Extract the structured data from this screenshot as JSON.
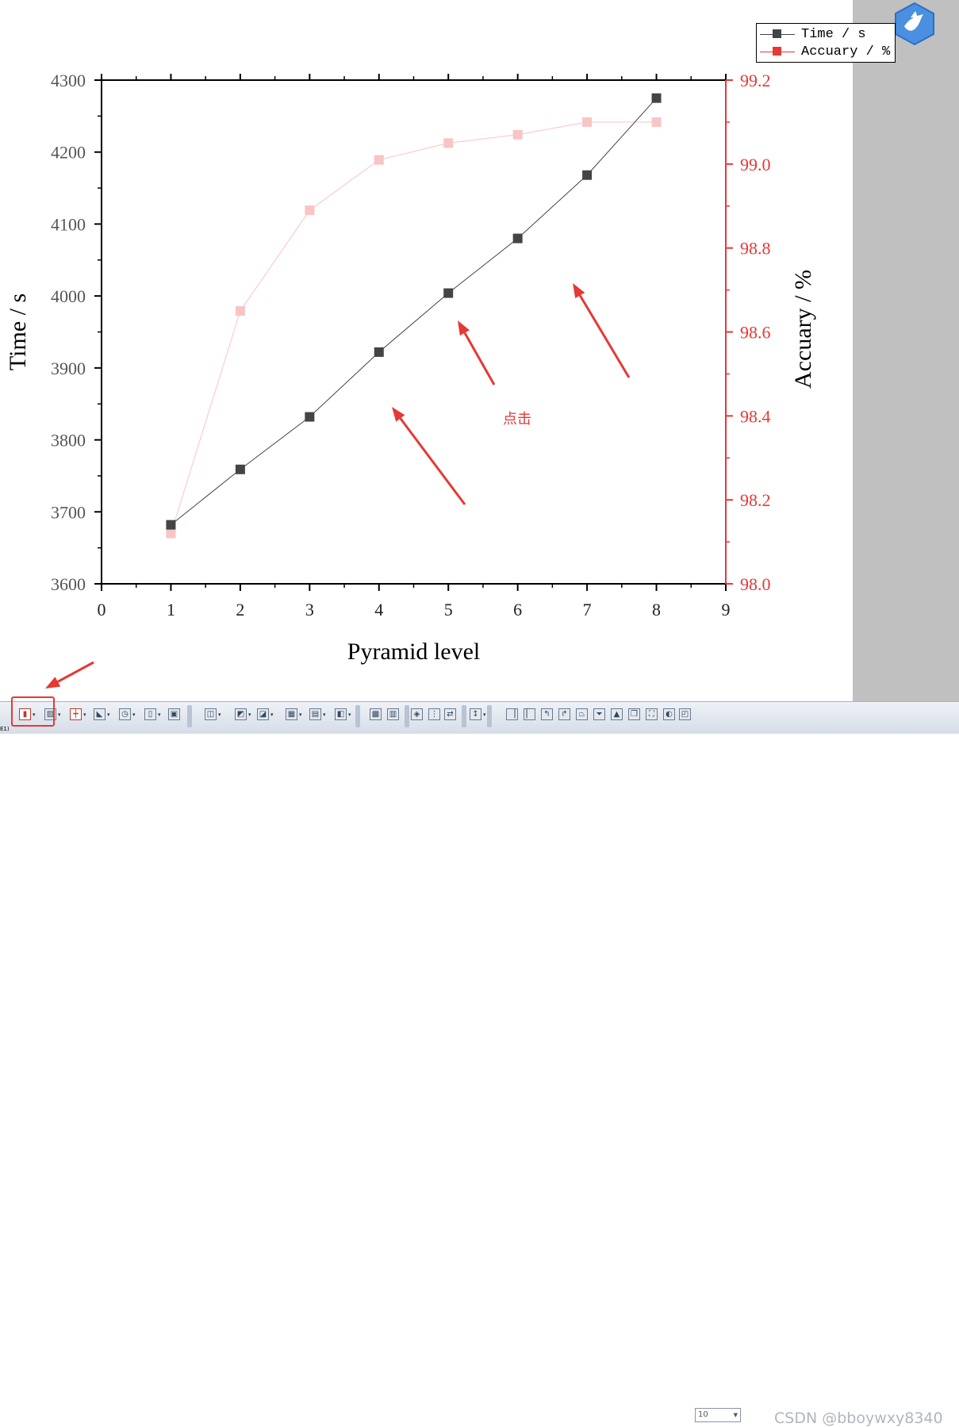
{
  "chart_data": {
    "type": "line",
    "x": [
      1,
      2,
      3,
      4,
      5,
      6,
      7,
      8
    ],
    "xlabel": "Pyramid level",
    "xlim": [
      0,
      9
    ],
    "xticks": [
      0,
      1,
      2,
      3,
      4,
      5,
      6,
      7,
      8,
      9
    ],
    "y_left": {
      "label": "Time / s",
      "lim": [
        3600,
        4300
      ],
      "ticks": [
        3600,
        3700,
        3800,
        3900,
        4000,
        4100,
        4200,
        4300
      ],
      "color": "#444444"
    },
    "y_right": {
      "label": "Accuary / %",
      "lim": [
        98.0,
        99.2
      ],
      "ticks": [
        "98.0",
        "98.2",
        "98.4",
        "98.6",
        "98.8",
        "99.0",
        "99.2"
      ],
      "color": "#e53935"
    },
    "series": [
      {
        "name": "Time / s",
        "axis": "left",
        "values": [
          3682,
          3759,
          3832,
          3922,
          4004,
          4080,
          4168,
          4275
        ],
        "color": "#444444",
        "marker": "square"
      },
      {
        "name": "Accuary / %",
        "axis": "right",
        "values": [
          98.12,
          98.65,
          98.89,
          99.01,
          99.05,
          99.07,
          99.1,
          99.1
        ],
        "color": "#f9c4c4",
        "marker": "square"
      }
    ],
    "legend": "top-right",
    "grid": false
  },
  "legend": {
    "time_label": "Time / s",
    "accuracy_label": "Accuary / %",
    "time_color": "#444444",
    "accuracy_color": "#e53935"
  },
  "annotation": {
    "click_note": "点击",
    "arrow_color": "#e53935"
  },
  "toolbar": {
    "label": "E1)",
    "font_size_value": "10",
    "highlight_color": "#e53935"
  },
  "watermark": "CSDN @bboywxy8340",
  "logo": "bird-logo-icon"
}
